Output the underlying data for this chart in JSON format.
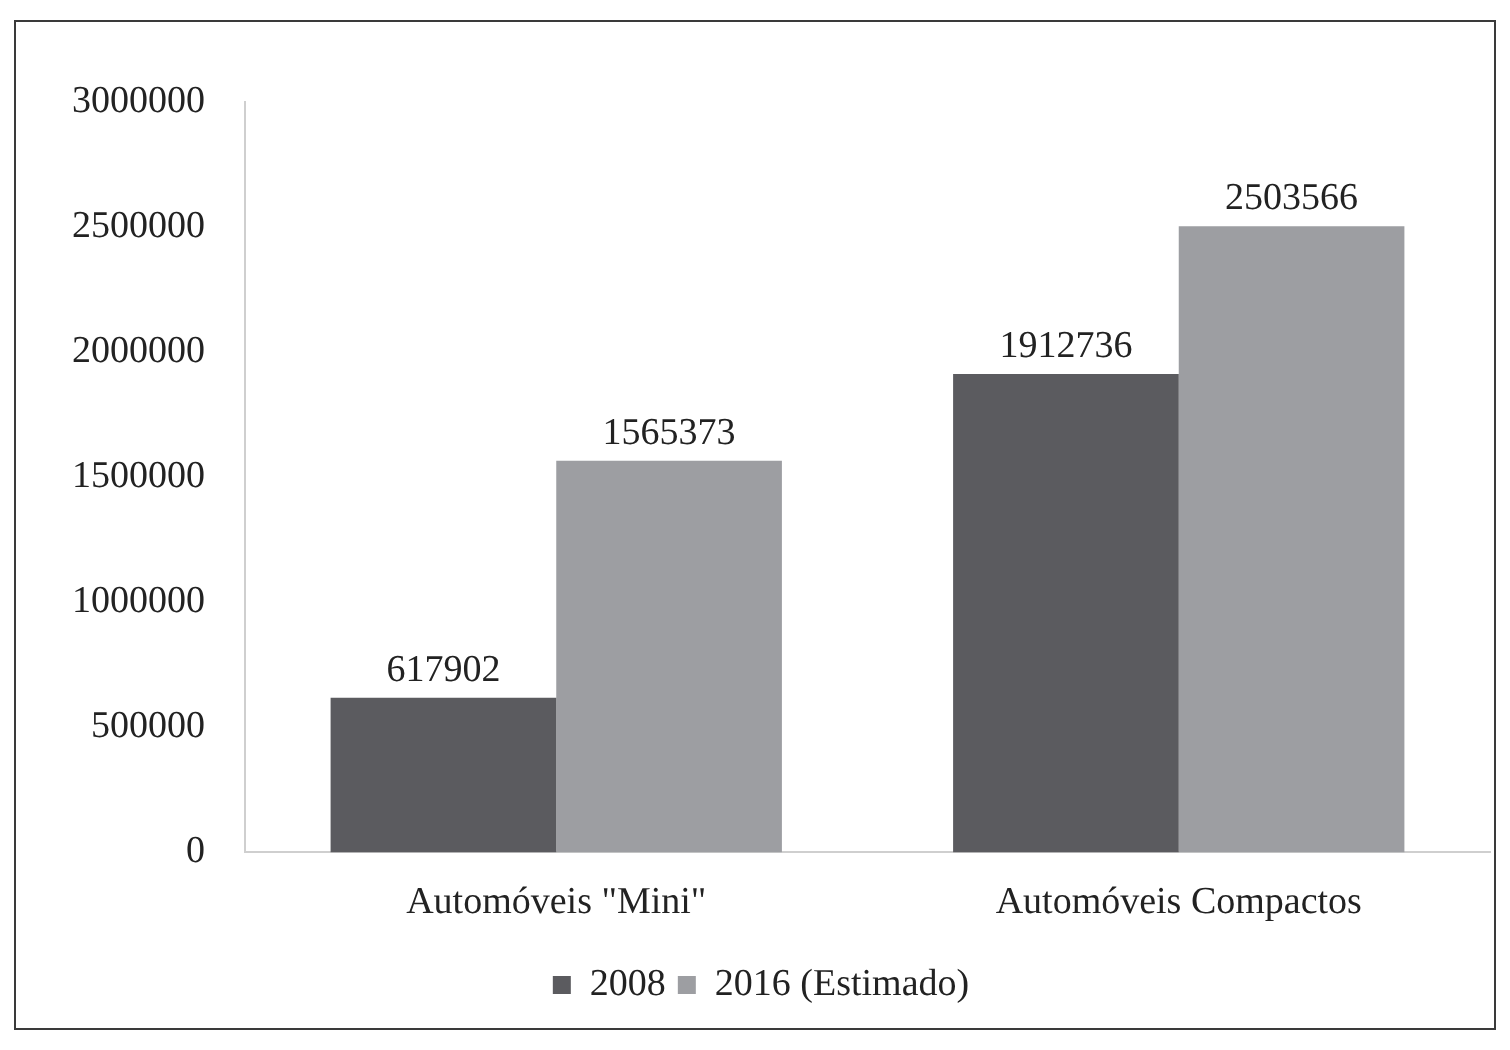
{
  "chart_data": {
    "type": "bar",
    "categories": [
      "Automóveis \"Mini\"",
      "Automóveis Compactos"
    ],
    "series": [
      {
        "name": "2008",
        "color": "#5b5b5f",
        "values": [
          617902,
          1912736
        ]
      },
      {
        "name": "2016 (Estimado)",
        "color": "#9d9ea2",
        "values": [
          1565373,
          2503566
        ]
      }
    ],
    "ylim": [
      0,
      3000000
    ],
    "yticks": [
      0,
      500000,
      1000000,
      1500000,
      2000000,
      2500000,
      3000000
    ],
    "grid": false,
    "legend": "bottom",
    "data_labels": true
  }
}
